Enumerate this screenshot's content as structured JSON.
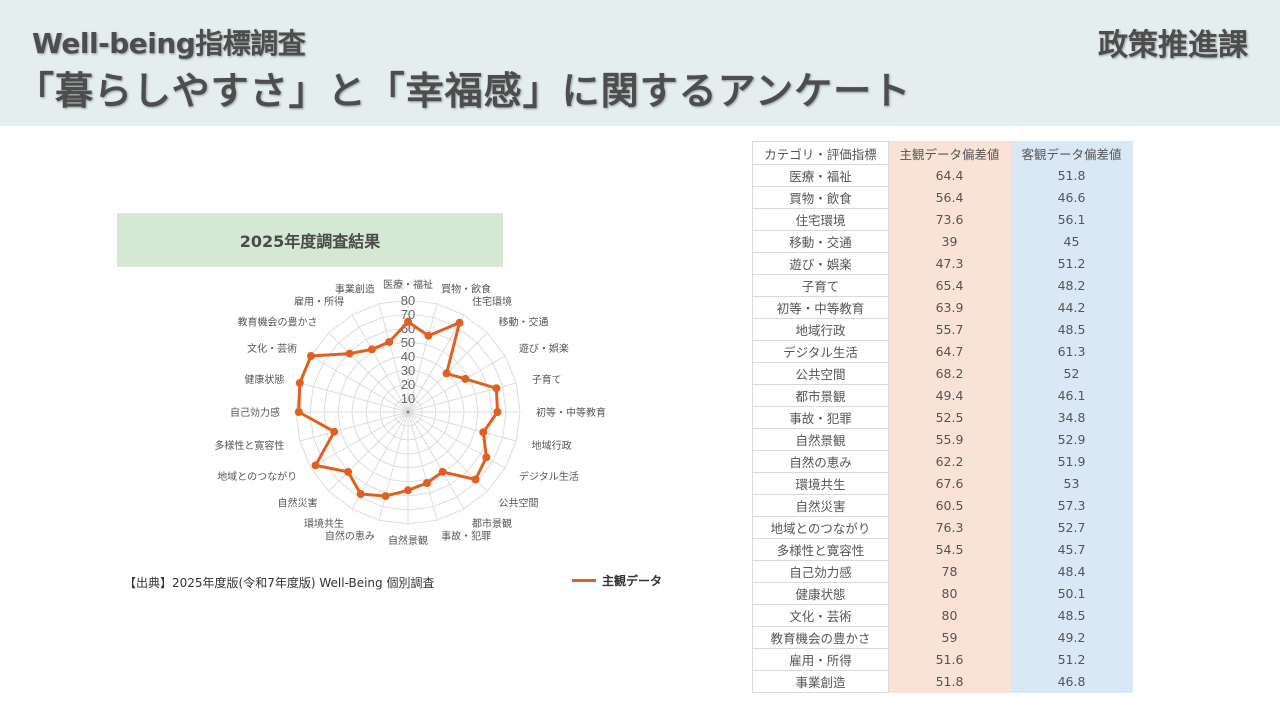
{
  "header": {
    "subtitle": "Well-being指標調査",
    "title": "「暮らしやすさ」と「幸福感」に関するアンケート",
    "department": "政策推進課"
  },
  "chart_panel": {
    "title": "2025年度調査結果",
    "source": "【出典】2025年度版(令和7年度版) Well-Being 個別調査",
    "legend_label": "主観データ"
  },
  "colors": {
    "series": "#e06020",
    "subjective_col": "#fbe2d6",
    "objective_col": "#dae8f6",
    "chart_title_bg": "#d4e8d4",
    "header_bg": "#e4eeef"
  },
  "table": {
    "headers": [
      "カテゴリ・評価指標",
      "主観データ偏差値",
      "客観データ偏差値"
    ],
    "rows": [
      [
        "医療・福祉",
        "64.4",
        "51.8"
      ],
      [
        "買物・飲食",
        "56.4",
        "46.6"
      ],
      [
        "住宅環境",
        "73.6",
        "56.1"
      ],
      [
        "移動・交通",
        "39",
        "45"
      ],
      [
        "遊び・娯楽",
        "47.3",
        "51.2"
      ],
      [
        "子育て",
        "65.4",
        "48.2"
      ],
      [
        "初等・中等教育",
        "63.9",
        "44.2"
      ],
      [
        "地域行政",
        "55.7",
        "48.5"
      ],
      [
        "デジタル生活",
        "64.7",
        "61.3"
      ],
      [
        "公共空間",
        "68.2",
        "52"
      ],
      [
        "都市景観",
        "49.4",
        "46.1"
      ],
      [
        "事故・犯罪",
        "52.5",
        "34.8"
      ],
      [
        "自然景観",
        "55.9",
        "52.9"
      ],
      [
        "自然の恵み",
        "62.2",
        "51.9"
      ],
      [
        "環境共生",
        "67.6",
        "53"
      ],
      [
        "自然災害",
        "60.5",
        "57.3"
      ],
      [
        "地域とのつながり",
        "76.3",
        "52.7"
      ],
      [
        "多様性と寛容性",
        "54.5",
        "45.7"
      ],
      [
        "自己効力感",
        "78",
        "48.4"
      ],
      [
        "健康状態",
        "80",
        "50.1"
      ],
      [
        "文化・芸術",
        "80",
        "48.5"
      ],
      [
        "教育機会の豊かさ",
        "59",
        "49.2"
      ],
      [
        "雇用・所得",
        "51.6",
        "51.2"
      ],
      [
        "事業創造",
        "51.8",
        "46.8"
      ]
    ]
  },
  "chart_data": {
    "type": "radar",
    "title": "2025年度調査結果",
    "categories": [
      "医療・福祉",
      "買物・飲食",
      "住宅環境",
      "移動・交通",
      "遊び・娯楽",
      "子育て",
      "初等・中等教育",
      "地域行政",
      "デジタル生活",
      "公共空間",
      "都市景観",
      "事故・犯罪",
      "自然景観",
      "自然の恵み",
      "環境共生",
      "自然災害",
      "地域とのつながり",
      "多様性と寛容性",
      "自己効力感",
      "健康状態",
      "文化・芸術",
      "教育機会の豊かさ",
      "雇用・所得",
      "事業創造"
    ],
    "series": [
      {
        "name": "主観データ",
        "color": "#e06020",
        "values": [
          64.4,
          56.4,
          73.6,
          39,
          47.3,
          65.4,
          63.9,
          55.7,
          64.7,
          68.2,
          49.4,
          52.5,
          55.9,
          62.2,
          67.6,
          60.5,
          76.3,
          54.5,
          78,
          80,
          80,
          59,
          51.6,
          51.8
        ]
      }
    ],
    "rlim": [
      0,
      80
    ],
    "ticks": [
      "10",
      "20",
      "30",
      "40",
      "50",
      "60",
      "70",
      "80"
    ],
    "grid": true,
    "legend_position": "bottom-right"
  }
}
